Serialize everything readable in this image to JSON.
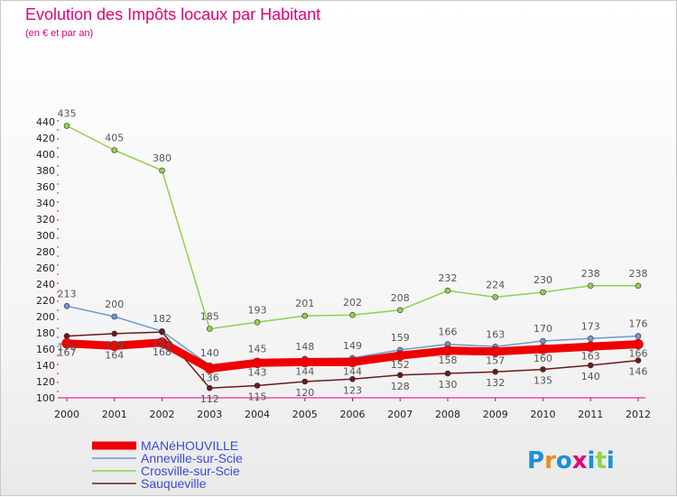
{
  "chart_data": {
    "type": "line",
    "title": "Evolution des Impôts locaux par Habitant",
    "subtitle": "(en € et par an)",
    "xlabel": "",
    "ylabel": "",
    "categories": [
      "2000",
      "2001",
      "2002",
      "2003",
      "2004",
      "2005",
      "2006",
      "2007",
      "2008",
      "2009",
      "2010",
      "2011",
      "2012"
    ],
    "ylim": [
      100,
      440
    ],
    "yticks": [
      "100",
      "120",
      "140",
      "160",
      "180",
      "200",
      "220",
      "240",
      "260",
      "280",
      "300",
      "320",
      "340",
      "360",
      "380",
      "400",
      "420",
      "440"
    ],
    "grid": false,
    "legend_position": "bottom-left",
    "series": [
      {
        "name": "Crosville-sur-Scie",
        "color": "#8fd14f",
        "values": [
          435,
          405,
          380,
          185,
          193,
          201,
          202,
          208,
          232,
          224,
          230,
          238,
          238
        ],
        "labels": [
          "435",
          "405",
          "380",
          "185",
          "193",
          "201",
          "202",
          "208",
          "232",
          "224",
          "230",
          "238",
          "238"
        ]
      },
      {
        "name": "Anneville-sur-Scie",
        "color": "#6a9bd1",
        "values": [
          213,
          200,
          182,
          140,
          145,
          148,
          149,
          159,
          166,
          163,
          170,
          173,
          176
        ],
        "labels": [
          "213",
          "200",
          "182",
          "140",
          "145",
          "148",
          "149",
          "159",
          "166",
          "163",
          "170",
          "173",
          "176"
        ]
      },
      {
        "name": "Sauqueville",
        "color": "#6b1a1a",
        "values": [
          176,
          179,
          181,
          112,
          115,
          120,
          123,
          128,
          130,
          132,
          135,
          140,
          146
        ],
        "labels": [
          "176",
          "179",
          "181",
          "112",
          "115",
          "120",
          "123",
          "128",
          "130",
          "132",
          "135",
          "140",
          "146"
        ]
      },
      {
        "name": "MANéHOUVILLE",
        "color": "#ee0000",
        "values": [
          167,
          164,
          168,
          136,
          143,
          144,
          144,
          152,
          158,
          157,
          160,
          163,
          166
        ],
        "labels": [
          "167",
          "164",
          "168",
          "136",
          "143",
          "144",
          "144",
          "152",
          "158",
          "157",
          "160",
          "163",
          "166"
        ]
      }
    ],
    "legend": [
      "MANéHOUVILLE",
      "Anneville-sur-Scie",
      "Crosville-sur-Scie",
      "Sauqueville"
    ]
  },
  "logo": {
    "text": "Proxiti",
    "colors": [
      "#1e8fd5",
      "#f08a1c",
      "#1e8fd5",
      "#e4007c",
      "#1e8fd5",
      "#8fd14f",
      "#1e8fd5"
    ]
  }
}
